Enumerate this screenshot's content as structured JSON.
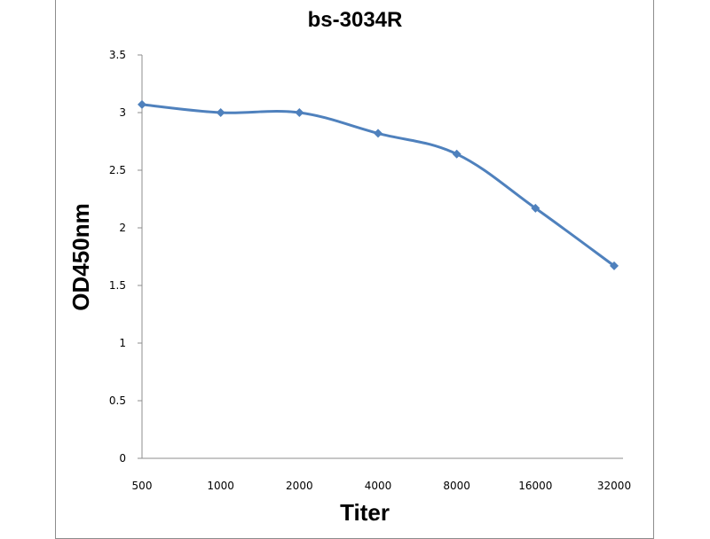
{
  "chart_data": {
    "type": "line",
    "title": "bs-3034R",
    "xlabel": "Titer",
    "ylabel": "OD450nm",
    "categories": [
      "500",
      "1000",
      "2000",
      "4000",
      "8000",
      "16000",
      "32000"
    ],
    "series": [
      {
        "values": [
          3.07,
          3.0,
          3.0,
          2.82,
          2.64,
          2.17,
          1.67
        ]
      }
    ],
    "y_ticks": [
      "0",
      "0.5",
      "1",
      "1.5",
      "2",
      "2.5",
      "3",
      "3.5"
    ],
    "ylim": [
      0,
      3.5
    ],
    "grid": false,
    "legend": "none",
    "marker": "diamond",
    "line_color": "#4F81BD"
  }
}
